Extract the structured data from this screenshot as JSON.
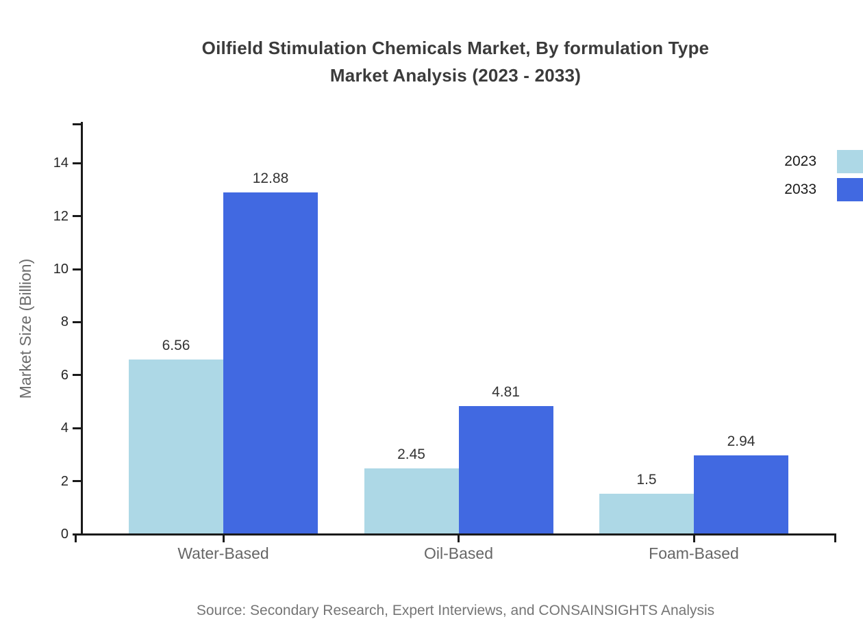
{
  "title": {
    "line1": "Oilfield Stimulation Chemicals Market, By formulation Type",
    "line2": "Market Analysis (2023 - 2033)"
  },
  "source": "Source: Secondary Research, Expert Interviews, and CONSAINSIGHTS Analysis",
  "chart_data": {
    "type": "bar",
    "title": "Oilfield Stimulation Chemicals Market, By formulation Type Market Analysis (2023 - 2033)",
    "categories": [
      "Water-Based",
      "Oil-Based",
      "Foam-Based"
    ],
    "series": [
      {
        "name": "2023",
        "color": "#ADD8E6",
        "values": [
          6.56,
          2.45,
          1.5
        ]
      },
      {
        "name": "2033",
        "color": "#4169E1",
        "values": [
          12.88,
          4.81,
          2.94
        ]
      }
    ],
    "xlabel": "",
    "ylabel": "Market Size (Billion)",
    "ylim": [
      0,
      15.5
    ],
    "yticks": [
      0,
      2,
      4,
      6,
      8,
      10,
      12,
      14
    ],
    "grid": false,
    "legend_position": "top-right",
    "value_labels_shown": true
  }
}
